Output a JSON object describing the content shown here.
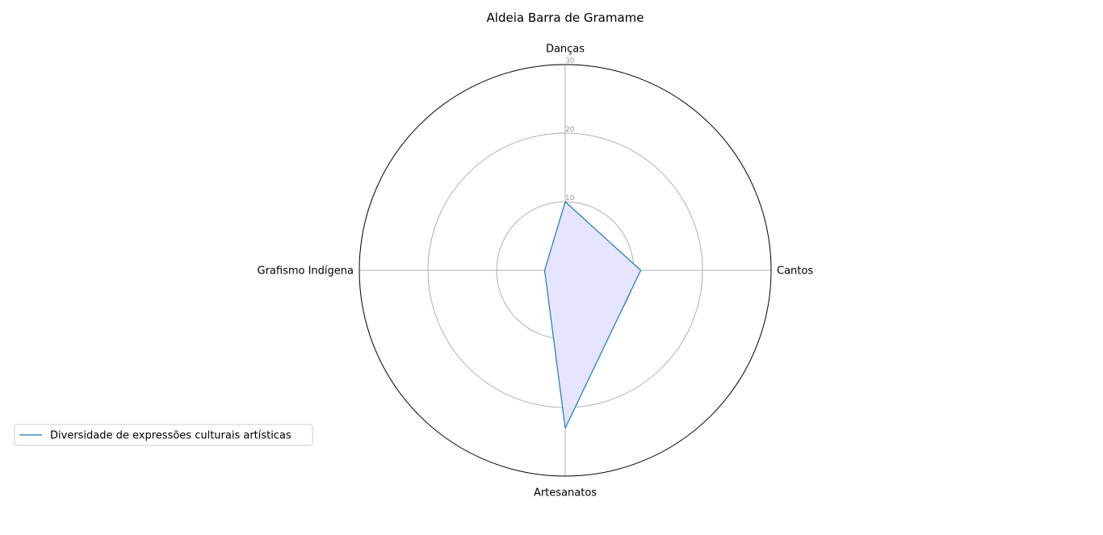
{
  "chart_data": {
    "type": "radar",
    "title": "Aldeia Barra de Gramame",
    "categories": [
      "Danças",
      "Cantos",
      "Artesanatos",
      "Grafismo Indígena"
    ],
    "series": [
      {
        "name": "Diversidade de expressões culturais artísticas",
        "values": [
          10,
          11,
          23,
          3
        ],
        "line_color": "#1f77b4",
        "fill_color": "#e5e5ff"
      }
    ],
    "rlim": [
      0,
      30
    ],
    "rticks": [
      10,
      20,
      30
    ],
    "grid": true,
    "legend_position": "bottom-left"
  }
}
